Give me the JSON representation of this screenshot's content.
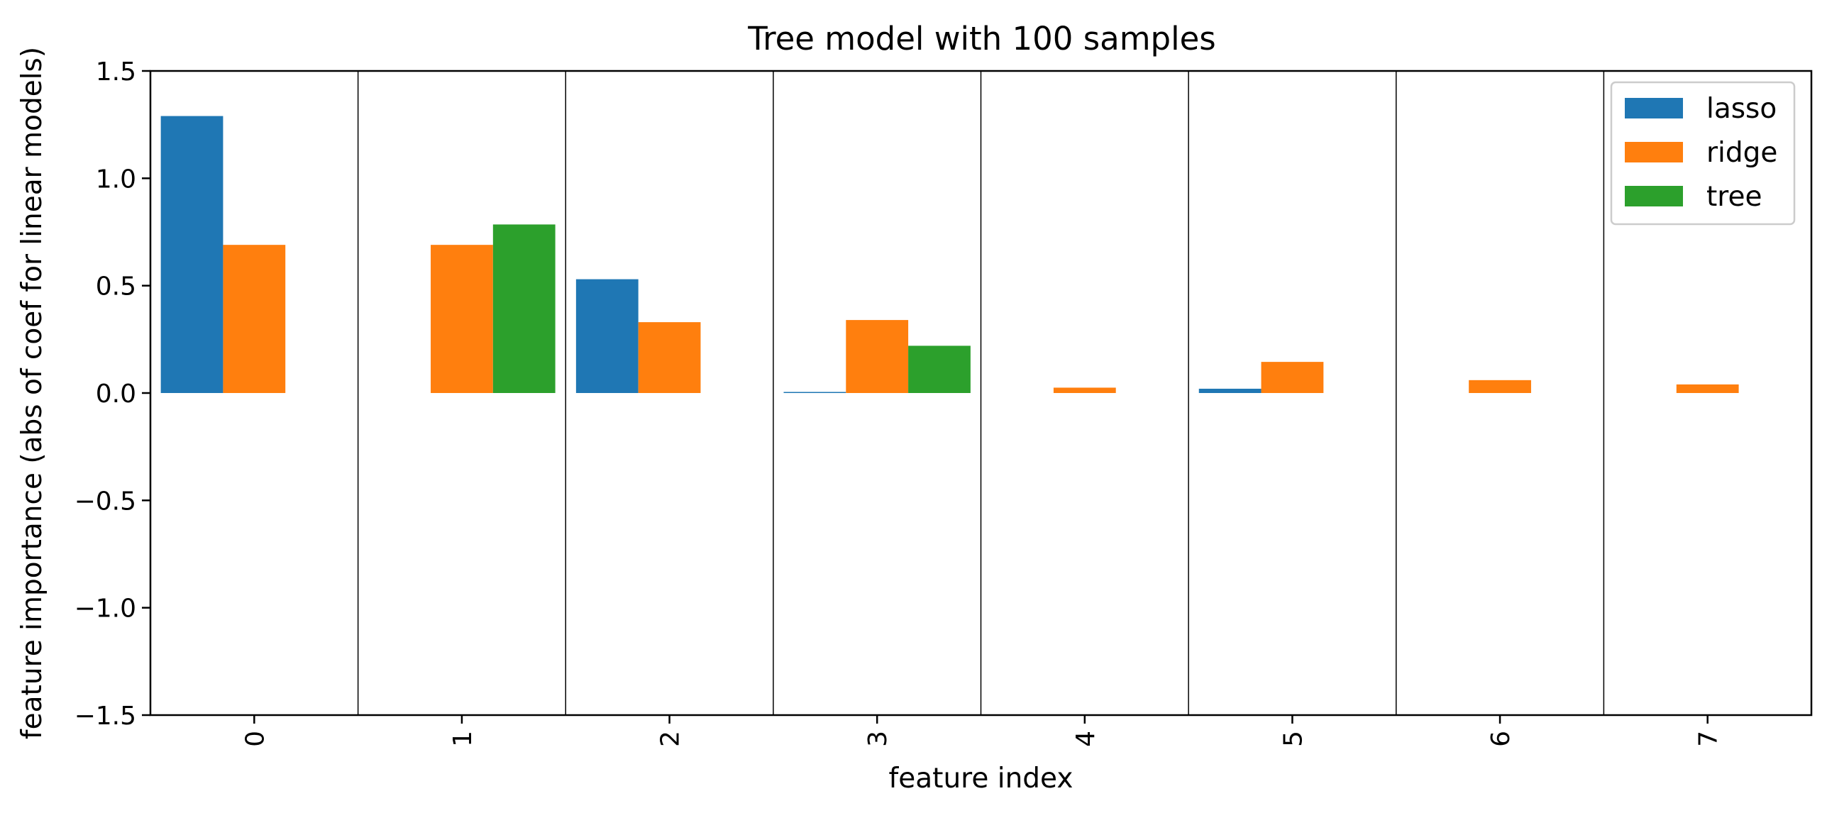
{
  "chart_data": {
    "type": "bar",
    "title": "Tree model with 100 samples",
    "xlabel": "feature index",
    "ylabel": "feature importance (abs of coef for linear models)",
    "categories": [
      "0",
      "1",
      "2",
      "3",
      "4",
      "5",
      "6",
      "7"
    ],
    "ylim": [
      -1.5,
      1.5
    ],
    "yticks": [
      1.5,
      1.0,
      0.5,
      0.0,
      -0.5,
      -1.0,
      -1.5
    ],
    "ytick_labels": [
      "1.5",
      "1.0",
      "0.5",
      "0.0",
      "−0.5",
      "−1.0",
      "−1.5"
    ],
    "xtick_rotation": "vertical",
    "grid": false,
    "category_separators": true,
    "legend_placement": "top-right",
    "series": [
      {
        "name": "lasso",
        "color": "#1f77b4",
        "values": [
          1.29,
          0.0,
          0.53,
          0.005,
          0.0,
          0.02,
          0.0,
          0.0
        ]
      },
      {
        "name": "ridge",
        "color": "#ff7f0e",
        "values": [
          0.69,
          0.69,
          0.33,
          0.34,
          0.025,
          0.145,
          0.06,
          0.04
        ]
      },
      {
        "name": "tree",
        "color": "#2ca02c",
        "values": [
          0.0,
          0.785,
          0.0,
          0.22,
          0.0,
          0.0,
          0.0,
          0.0
        ]
      }
    ]
  }
}
